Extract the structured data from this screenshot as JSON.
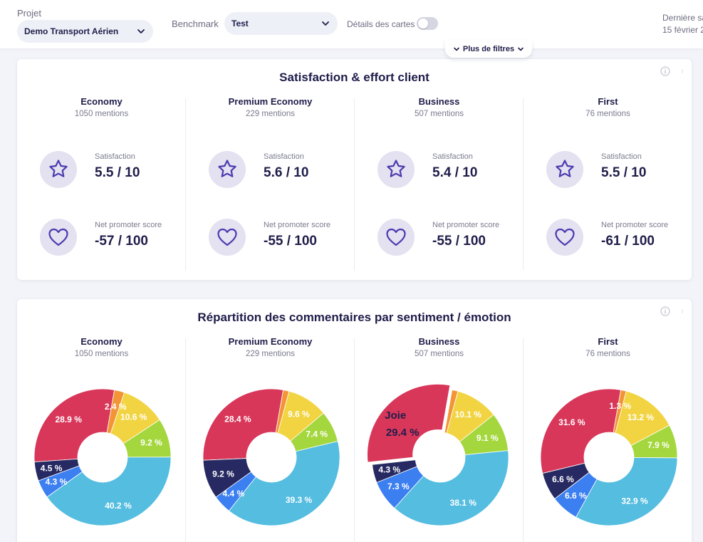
{
  "filters": {
    "project_label": "Projet",
    "project_value": "Demo Transport Aérien",
    "benchmark_label": "Benchmark",
    "benchmark_value": "Test",
    "card_details_label": "Détails des cartes",
    "card_details_on": false,
    "last_save_line1": "Dernière sa",
    "last_save_line2": "15 février 2",
    "more_filters_label": "Plus de filtres"
  },
  "satisfaction_card": {
    "title": "Satisfaction & effort client",
    "satisfaction_label": "Satisfaction",
    "nps_label": "Net promoter score",
    "columns": [
      {
        "name": "Economy",
        "mentions": "1050 mentions",
        "satisfaction": "5.5 / 10",
        "nps": "-57 / 100"
      },
      {
        "name": "Premium Economy",
        "mentions": "229 mentions",
        "satisfaction": "5.6 / 10",
        "nps": "-55 / 100"
      },
      {
        "name": "Business",
        "mentions": "507 mentions",
        "satisfaction": "5.4 / 10",
        "nps": "-55 / 100"
      },
      {
        "name": "First",
        "mentions": "76 mentions",
        "satisfaction": "5.5 / 10",
        "nps": "-61 / 100"
      }
    ]
  },
  "sentiment_card": {
    "title": "Répartition des commentaires par sentiment / émotion",
    "columns": [
      {
        "name": "Economy",
        "mentions": "1050 mentions"
      },
      {
        "name": "Premium Economy",
        "mentions": "229 mentions"
      },
      {
        "name": "Business",
        "mentions": "507 mentions"
      },
      {
        "name": "First",
        "mentions": "76 mentions"
      }
    ]
  },
  "colors": {
    "joie": "#d8375a",
    "orange": "#f39536",
    "yellow": "#f2d442",
    "green": "#a4d73e",
    "lightblue": "#54bde0",
    "blue": "#3b7ff0",
    "navy": "#272a62",
    "icon_bg": "#e4e1f0",
    "icon_stroke": "#4b3bb0"
  },
  "chart_data": [
    {
      "type": "pie",
      "title": "Economy",
      "slices": [
        {
          "value": 28.9,
          "label": "28.9 %",
          "color": "joie"
        },
        {
          "value": 2.4,
          "label": "2.4 %",
          "color": "orange"
        },
        {
          "value": 10.6,
          "label": "10.6 %",
          "color": "yellow"
        },
        {
          "value": 9.2,
          "label": "9.2 %",
          "color": "green"
        },
        {
          "value": 40.2,
          "label": "40.2 %",
          "color": "lightblue"
        },
        {
          "value": 4.3,
          "label": "4.3 %",
          "color": "blue"
        },
        {
          "value": 4.5,
          "label": "4.5 %",
          "color": "navy"
        }
      ]
    },
    {
      "type": "pie",
      "title": "Premium Economy",
      "slices": [
        {
          "value": 28.4,
          "label": "28.4 %",
          "color": "joie"
        },
        {
          "value": 1.4,
          "label": "",
          "color": "orange"
        },
        {
          "value": 9.6,
          "label": "9.6 %",
          "color": "yellow"
        },
        {
          "value": 7.4,
          "label": "7.4 %",
          "color": "green"
        },
        {
          "value": 39.3,
          "label": "39.3 %",
          "color": "lightblue"
        },
        {
          "value": 4.4,
          "label": "4.4 %",
          "color": "blue"
        },
        {
          "value": 9.2,
          "label": "9.2 %",
          "color": "navy"
        }
      ]
    },
    {
      "type": "pie",
      "title": "Business",
      "hover": {
        "name": "Joie",
        "value": "29.4 %"
      },
      "slices": [
        {
          "value": 29.4,
          "label": "29.4 %",
          "color": "joie",
          "highlighted": true
        },
        {
          "value": 1.4,
          "label": "",
          "color": "orange"
        },
        {
          "value": 10.1,
          "label": "10.1 %",
          "color": "yellow"
        },
        {
          "value": 9.1,
          "label": "9.1 %",
          "color": "green"
        },
        {
          "value": 38.1,
          "label": "38.1 %",
          "color": "lightblue"
        },
        {
          "value": 7.3,
          "label": "7.3 %",
          "color": "blue"
        },
        {
          "value": 4.3,
          "label": "4.3 %",
          "color": "navy"
        }
      ]
    },
    {
      "type": "pie",
      "title": "First",
      "slices": [
        {
          "value": 31.6,
          "label": "31.6 %",
          "color": "joie"
        },
        {
          "value": 1.3,
          "label": "1.3 %",
          "color": "orange"
        },
        {
          "value": 13.2,
          "label": "13.2 %",
          "color": "yellow"
        },
        {
          "value": 7.9,
          "label": "7.9 %",
          "color": "green"
        },
        {
          "value": 32.9,
          "label": "32.9 %",
          "color": "lightblue"
        },
        {
          "value": 6.6,
          "label": "6.6 %",
          "color": "blue"
        },
        {
          "value": 6.6,
          "label": "6.6 %",
          "color": "navy"
        }
      ]
    }
  ]
}
